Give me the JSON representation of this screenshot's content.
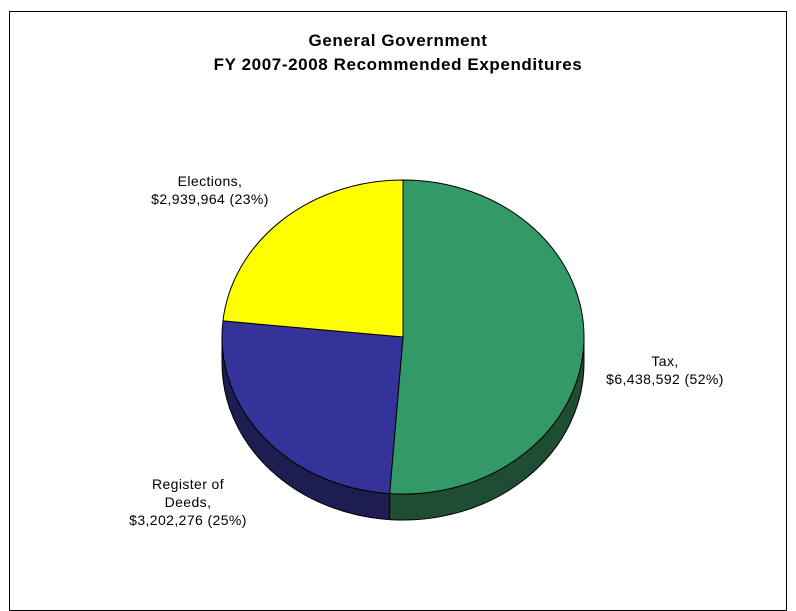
{
  "chart_data": {
    "type": "pie",
    "title": "General Government",
    "subtitle": "FY 2007-2008 Recommended Expenditures",
    "slices": [
      {
        "name": "Tax",
        "value": 6438592,
        "percent": 52,
        "color": "#339966",
        "side_color": "#1f4d33",
        "label_lines": [
          "Tax,",
          "$6,438,592 (52%)"
        ]
      },
      {
        "name": "Register of Deeds",
        "value": 3202276,
        "percent": 25,
        "color": "#333399",
        "side_color": "#1d1d52",
        "label_lines": [
          "Register of",
          "Deeds,",
          "$3,202,276 (25%)"
        ]
      },
      {
        "name": "Elections",
        "value": 2939964,
        "percent": 23,
        "color": "#ffff00",
        "side_color": "#8a8a00",
        "label_lines": [
          "Elections,",
          "$2,939,964 (23%)"
        ]
      }
    ]
  }
}
